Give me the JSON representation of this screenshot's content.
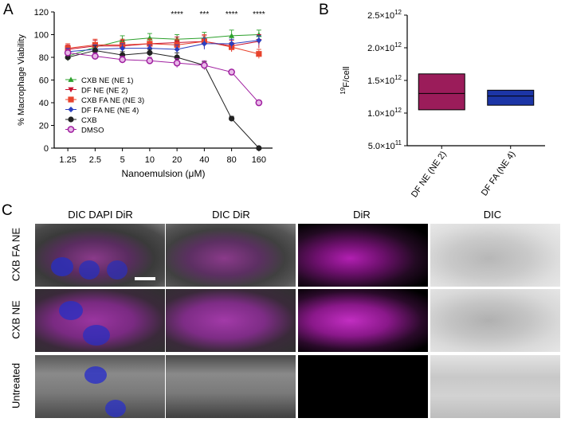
{
  "panels": {
    "a": "A",
    "b": "B",
    "c": "C"
  },
  "chart_data": [
    {
      "type": "line",
      "ylabel": "% Macrophage Viability",
      "xlabel": "Nanoemulsion (μM)",
      "categories": [
        "1.25",
        "2.5",
        "5",
        "10",
        "20",
        "40",
        "80",
        "160"
      ],
      "ylim": [
        0,
        120
      ],
      "yticks": [
        0,
        20,
        40,
        60,
        80,
        100,
        120
      ],
      "significance": [
        "",
        "",
        "",
        "",
        "****",
        "***",
        "****",
        "****"
      ],
      "legend_position": "lower-left",
      "series": [
        {
          "name": "CXB NE (NE 1)",
          "color": "#2ca02c",
          "marker": "triangle-up",
          "values": [
            81,
            89,
            95,
            97,
            96,
            97,
            99,
            100
          ],
          "err": [
            4,
            4,
            4,
            4,
            4,
            5,
            5,
            4
          ]
        },
        {
          "name": "DF NE (NE 2)",
          "color": "#c8102e",
          "marker": "triangle-down",
          "values": [
            87,
            90,
            90,
            92,
            93,
            94,
            90,
            94
          ],
          "err": [
            4,
            5,
            5,
            4,
            5,
            5,
            5,
            6
          ]
        },
        {
          "name": "CXB FA NE (NE 3)",
          "color": "#e8432c",
          "marker": "square",
          "values": [
            88,
            91,
            91,
            92,
            91,
            94,
            89,
            83
          ],
          "err": [
            4,
            5,
            5,
            4,
            5,
            6,
            4,
            4
          ]
        },
        {
          "name": "DF FA NE (NE 4)",
          "color": "#2c3fbf",
          "marker": "diamond",
          "values": [
            85,
            87,
            88,
            88,
            87,
            92,
            92,
            95
          ],
          "err": [
            3,
            4,
            4,
            3,
            4,
            5,
            4,
            4
          ]
        },
        {
          "name": "CXB",
          "color": "#222222",
          "marker": "circle",
          "values": [
            80,
            86,
            82,
            84,
            80,
            73,
            26,
            0
          ],
          "err": [
            3,
            4,
            3,
            3,
            4,
            3,
            2,
            1
          ]
        },
        {
          "name": "DMSO",
          "color": "#a020a0",
          "marker": "open-circle",
          "values": [
            84,
            81,
            78,
            77,
            75,
            73,
            67,
            40
          ],
          "err": [
            3,
            3,
            3,
            3,
            4,
            4,
            2,
            2
          ]
        }
      ]
    },
    {
      "type": "box",
      "ylabel_sup": "19",
      "ylabel_rest": "F/cell",
      "ytick_mantissa": [
        "5.0×10",
        "1.0×10",
        "1.5×10",
        "2.0×10",
        "2.5×10"
      ],
      "ytick_exponent": [
        "11",
        "12",
        "12",
        "12",
        "12"
      ],
      "yticks": [
        500000000000.0,
        1000000000000.0,
        1500000000000.0,
        2000000000000.0,
        2500000000000.0
      ],
      "ylim": [
        500000000000.0,
        2500000000000.0
      ],
      "categories": [
        "DF NE (NE 2)",
        "DF FA  (NE 4)"
      ],
      "boxes": [
        {
          "name": "DF NE (NE 2)",
          "color": "#9b1c5a",
          "min": 1050000000000.0,
          "median": 1300000000000.0,
          "max": 1600000000000.0
        },
        {
          "name": "DF FA  (NE 4)",
          "color": "#1c35a6",
          "min": 1120000000000.0,
          "median": 1260000000000.0,
          "max": 1350000000000.0
        }
      ]
    }
  ],
  "microscopy": {
    "columns": [
      "DIC DAPI DiR",
      "DIC DiR",
      "DiR",
      "DIC"
    ],
    "rows": [
      "CXB FA NE",
      "CXB NE",
      "Untreated"
    ]
  }
}
